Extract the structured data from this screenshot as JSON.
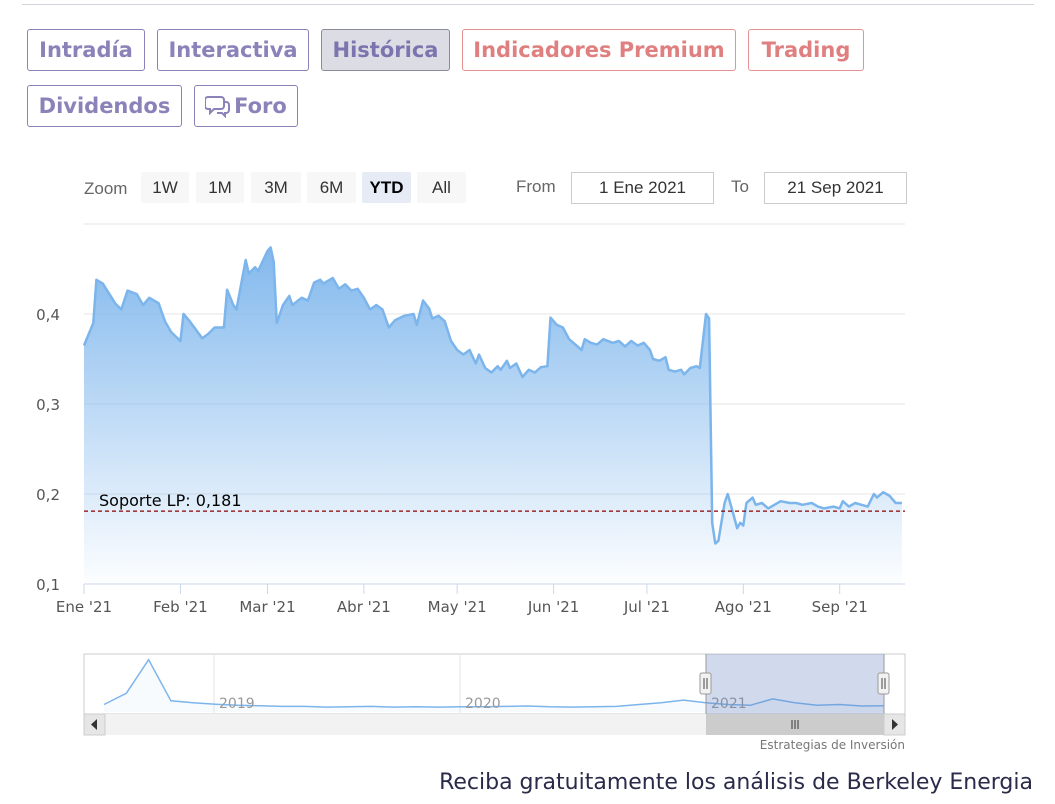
{
  "tabs": [
    {
      "label": "Intradía",
      "style": "normal"
    },
    {
      "label": "Interactiva",
      "style": "normal"
    },
    {
      "label": "Histórica",
      "style": "active"
    },
    {
      "label": "Indicadores Premium",
      "style": "premium"
    },
    {
      "label": "Trading",
      "style": "premium"
    },
    {
      "label": "Dividendos",
      "style": "normal"
    },
    {
      "label": "Foro",
      "style": "normal",
      "icon": "chat-bubbles-icon"
    }
  ],
  "range_selector": {
    "zoom_label": "Zoom",
    "buttons": [
      "1W",
      "1M",
      "3M",
      "6M",
      "YTD",
      "All"
    ],
    "selected": "YTD",
    "from_label": "From",
    "from_value": "1 Ene 2021",
    "to_label": "To",
    "to_value": "21 Sep 2021"
  },
  "chart_data": {
    "type": "area",
    "title": "",
    "xlabel": "",
    "ylabel": "",
    "ylim": [
      0.1,
      0.5
    ],
    "y_ticks": [
      "0,1",
      "0,2",
      "0,3",
      "0,4"
    ],
    "x_ticks": [
      "Ene '21",
      "Feb '21",
      "Mar '21",
      "Abr '21",
      "May '21",
      "Jun '21",
      "Jul '21",
      "Ago '21",
      "Sep '21"
    ],
    "grid": "horizontal",
    "series": [
      {
        "values": [
          {
            "x": "2021-01-01",
            "y": 0.365
          },
          {
            "x": "2021-01-04",
            "y": 0.39
          },
          {
            "x": "2021-01-05",
            "y": 0.438
          },
          {
            "x": "2021-01-07",
            "y": 0.434
          },
          {
            "x": "2021-01-11",
            "y": 0.412
          },
          {
            "x": "2021-01-13",
            "y": 0.405
          },
          {
            "x": "2021-01-15",
            "y": 0.426
          },
          {
            "x": "2021-01-18",
            "y": 0.422
          },
          {
            "x": "2021-01-20",
            "y": 0.41
          },
          {
            "x": "2021-01-22",
            "y": 0.418
          },
          {
            "x": "2021-01-25",
            "y": 0.412
          },
          {
            "x": "2021-01-27",
            "y": 0.392
          },
          {
            "x": "2021-01-29",
            "y": 0.38
          },
          {
            "x": "2021-02-01",
            "y": 0.37
          },
          {
            "x": "2021-02-02",
            "y": 0.4
          },
          {
            "x": "2021-02-04",
            "y": 0.392
          },
          {
            "x": "2021-02-08",
            "y": 0.373
          },
          {
            "x": "2021-02-10",
            "y": 0.378
          },
          {
            "x": "2021-02-12",
            "y": 0.385
          },
          {
            "x": "2021-02-15",
            "y": 0.385
          },
          {
            "x": "2021-02-16",
            "y": 0.427
          },
          {
            "x": "2021-02-18",
            "y": 0.41
          },
          {
            "x": "2021-02-19",
            "y": 0.405
          },
          {
            "x": "2021-02-22",
            "y": 0.46
          },
          {
            "x": "2021-02-23",
            "y": 0.445
          },
          {
            "x": "2021-02-25",
            "y": 0.452
          },
          {
            "x": "2021-02-26",
            "y": 0.448
          },
          {
            "x": "2021-03-01",
            "y": 0.47
          },
          {
            "x": "2021-03-02",
            "y": 0.474
          },
          {
            "x": "2021-03-03",
            "y": 0.458
          },
          {
            "x": "2021-03-04",
            "y": 0.39
          },
          {
            "x": "2021-03-06",
            "y": 0.41
          },
          {
            "x": "2021-03-08",
            "y": 0.42
          },
          {
            "x": "2021-03-09",
            "y": 0.41
          },
          {
            "x": "2021-03-12",
            "y": 0.418
          },
          {
            "x": "2021-03-14",
            "y": 0.415
          },
          {
            "x": "2021-03-16",
            "y": 0.435
          },
          {
            "x": "2021-03-18",
            "y": 0.438
          },
          {
            "x": "2021-03-19",
            "y": 0.434
          },
          {
            "x": "2021-03-22",
            "y": 0.44
          },
          {
            "x": "2021-03-24",
            "y": 0.428
          },
          {
            "x": "2021-03-26",
            "y": 0.433
          },
          {
            "x": "2021-03-28",
            "y": 0.426
          },
          {
            "x": "2021-03-30",
            "y": 0.428
          },
          {
            "x": "2021-04-01",
            "y": 0.418
          },
          {
            "x": "2021-04-03",
            "y": 0.405
          },
          {
            "x": "2021-04-05",
            "y": 0.41
          },
          {
            "x": "2021-04-07",
            "y": 0.405
          },
          {
            "x": "2021-04-09",
            "y": 0.385
          },
          {
            "x": "2021-04-11",
            "y": 0.393
          },
          {
            "x": "2021-04-14",
            "y": 0.398
          },
          {
            "x": "2021-04-17",
            "y": 0.4
          },
          {
            "x": "2021-04-18",
            "y": 0.388
          },
          {
            "x": "2021-04-20",
            "y": 0.415
          },
          {
            "x": "2021-04-22",
            "y": 0.406
          },
          {
            "x": "2021-04-23",
            "y": 0.395
          },
          {
            "x": "2021-04-25",
            "y": 0.398
          },
          {
            "x": "2021-04-27",
            "y": 0.392
          },
          {
            "x": "2021-04-29",
            "y": 0.37
          },
          {
            "x": "2021-05-01",
            "y": 0.36
          },
          {
            "x": "2021-05-03",
            "y": 0.355
          },
          {
            "x": "2021-05-05",
            "y": 0.36
          },
          {
            "x": "2021-05-07",
            "y": 0.345
          },
          {
            "x": "2021-05-08",
            "y": 0.355
          },
          {
            "x": "2021-05-10",
            "y": 0.34
          },
          {
            "x": "2021-05-12",
            "y": 0.335
          },
          {
            "x": "2021-05-14",
            "y": 0.342
          },
          {
            "x": "2021-05-15",
            "y": 0.338
          },
          {
            "x": "2021-05-17",
            "y": 0.348
          },
          {
            "x": "2021-05-18",
            "y": 0.34
          },
          {
            "x": "2021-05-20",
            "y": 0.345
          },
          {
            "x": "2021-05-22",
            "y": 0.33
          },
          {
            "x": "2021-05-24",
            "y": 0.338
          },
          {
            "x": "2021-05-26",
            "y": 0.335
          },
          {
            "x": "2021-05-28",
            "y": 0.341
          },
          {
            "x": "2021-05-30",
            "y": 0.342
          },
          {
            "x": "2021-05-31",
            "y": 0.396
          },
          {
            "x": "2021-06-02",
            "y": 0.388
          },
          {
            "x": "2021-06-04",
            "y": 0.385
          },
          {
            "x": "2021-06-06",
            "y": 0.372
          },
          {
            "x": "2021-06-08",
            "y": 0.366
          },
          {
            "x": "2021-06-10",
            "y": 0.36
          },
          {
            "x": "2021-06-11",
            "y": 0.372
          },
          {
            "x": "2021-06-13",
            "y": 0.368
          },
          {
            "x": "2021-06-15",
            "y": 0.366
          },
          {
            "x": "2021-06-17",
            "y": 0.372
          },
          {
            "x": "2021-06-20",
            "y": 0.368
          },
          {
            "x": "2021-06-22",
            "y": 0.37
          },
          {
            "x": "2021-06-24",
            "y": 0.364
          },
          {
            "x": "2021-06-26",
            "y": 0.37
          },
          {
            "x": "2021-06-28",
            "y": 0.365
          },
          {
            "x": "2021-06-30",
            "y": 0.368
          },
          {
            "x": "2021-07-02",
            "y": 0.36
          },
          {
            "x": "2021-07-03",
            "y": 0.35
          },
          {
            "x": "2021-07-05",
            "y": 0.348
          },
          {
            "x": "2021-07-07",
            "y": 0.352
          },
          {
            "x": "2021-07-08",
            "y": 0.338
          },
          {
            "x": "2021-07-10",
            "y": 0.336
          },
          {
            "x": "2021-07-12",
            "y": 0.338
          },
          {
            "x": "2021-07-13",
            "y": 0.333
          },
          {
            "x": "2021-07-15",
            "y": 0.34
          },
          {
            "x": "2021-07-17",
            "y": 0.342
          },
          {
            "x": "2021-07-18",
            "y": 0.34
          },
          {
            "x": "2021-07-20",
            "y": 0.4
          },
          {
            "x": "2021-07-21",
            "y": 0.395
          },
          {
            "x": "2021-07-22",
            "y": 0.168
          },
          {
            "x": "2021-07-23",
            "y": 0.145
          },
          {
            "x": "2021-07-24",
            "y": 0.148
          },
          {
            "x": "2021-07-26",
            "y": 0.19
          },
          {
            "x": "2021-07-27",
            "y": 0.2
          },
          {
            "x": "2021-07-29",
            "y": 0.175
          },
          {
            "x": "2021-07-30",
            "y": 0.162
          },
          {
            "x": "2021-07-31",
            "y": 0.168
          },
          {
            "x": "2021-08-01",
            "y": 0.165
          },
          {
            "x": "2021-08-02",
            "y": 0.19
          },
          {
            "x": "2021-08-04",
            "y": 0.196
          },
          {
            "x": "2021-08-05",
            "y": 0.188
          },
          {
            "x": "2021-08-07",
            "y": 0.19
          },
          {
            "x": "2021-08-09",
            "y": 0.184
          },
          {
            "x": "2021-08-11",
            "y": 0.188
          },
          {
            "x": "2021-08-13",
            "y": 0.192
          },
          {
            "x": "2021-08-16",
            "y": 0.19
          },
          {
            "x": "2021-08-18",
            "y": 0.19
          },
          {
            "x": "2021-08-20",
            "y": 0.188
          },
          {
            "x": "2021-08-23",
            "y": 0.19
          },
          {
            "x": "2021-08-25",
            "y": 0.186
          },
          {
            "x": "2021-08-27",
            "y": 0.184
          },
          {
            "x": "2021-08-30",
            "y": 0.186
          },
          {
            "x": "2021-09-01",
            "y": 0.184
          },
          {
            "x": "2021-09-02",
            "y": 0.192
          },
          {
            "x": "2021-09-04",
            "y": 0.186
          },
          {
            "x": "2021-09-06",
            "y": 0.19
          },
          {
            "x": "2021-09-08",
            "y": 0.188
          },
          {
            "x": "2021-09-10",
            "y": 0.186
          },
          {
            "x": "2021-09-12",
            "y": 0.2
          },
          {
            "x": "2021-09-13",
            "y": 0.196
          },
          {
            "x": "2021-09-15",
            "y": 0.202
          },
          {
            "x": "2021-09-17",
            "y": 0.198
          },
          {
            "x": "2021-09-19",
            "y": 0.19
          },
          {
            "x": "2021-09-21",
            "y": 0.19
          }
        ]
      }
    ],
    "annotations": [
      {
        "type": "horizontal-line",
        "y": 0.181,
        "label": "Soporte LP: 0,181",
        "color": "#8b0000",
        "style": "dashed"
      }
    ],
    "navigator": {
      "year_labels": [
        "2019",
        "2020",
        "2021"
      ],
      "values": [
        0.2,
        0.23,
        0.32,
        0.21,
        0.205,
        0.201,
        0.198,
        0.197,
        0.195,
        0.195,
        0.193,
        0.194,
        0.195,
        0.193,
        0.194,
        0.193,
        0.194,
        0.194,
        0.195,
        0.196,
        0.194,
        0.193,
        0.194,
        0.195,
        0.2,
        0.205,
        0.212,
        0.205,
        0.2,
        0.198,
        0.215,
        0.205,
        0.198,
        0.2,
        0.196,
        0.197
      ]
    },
    "colors": {
      "line": "#7cb5ec",
      "fill_top": "#7cb5ec",
      "navigator_mask": "#6685c2",
      "support": "#8b0000"
    },
    "credits": "Estrategias de Inversión"
  },
  "footer": {
    "text": "Reciba gratuitamente los análisis de Berkeley Energia"
  }
}
